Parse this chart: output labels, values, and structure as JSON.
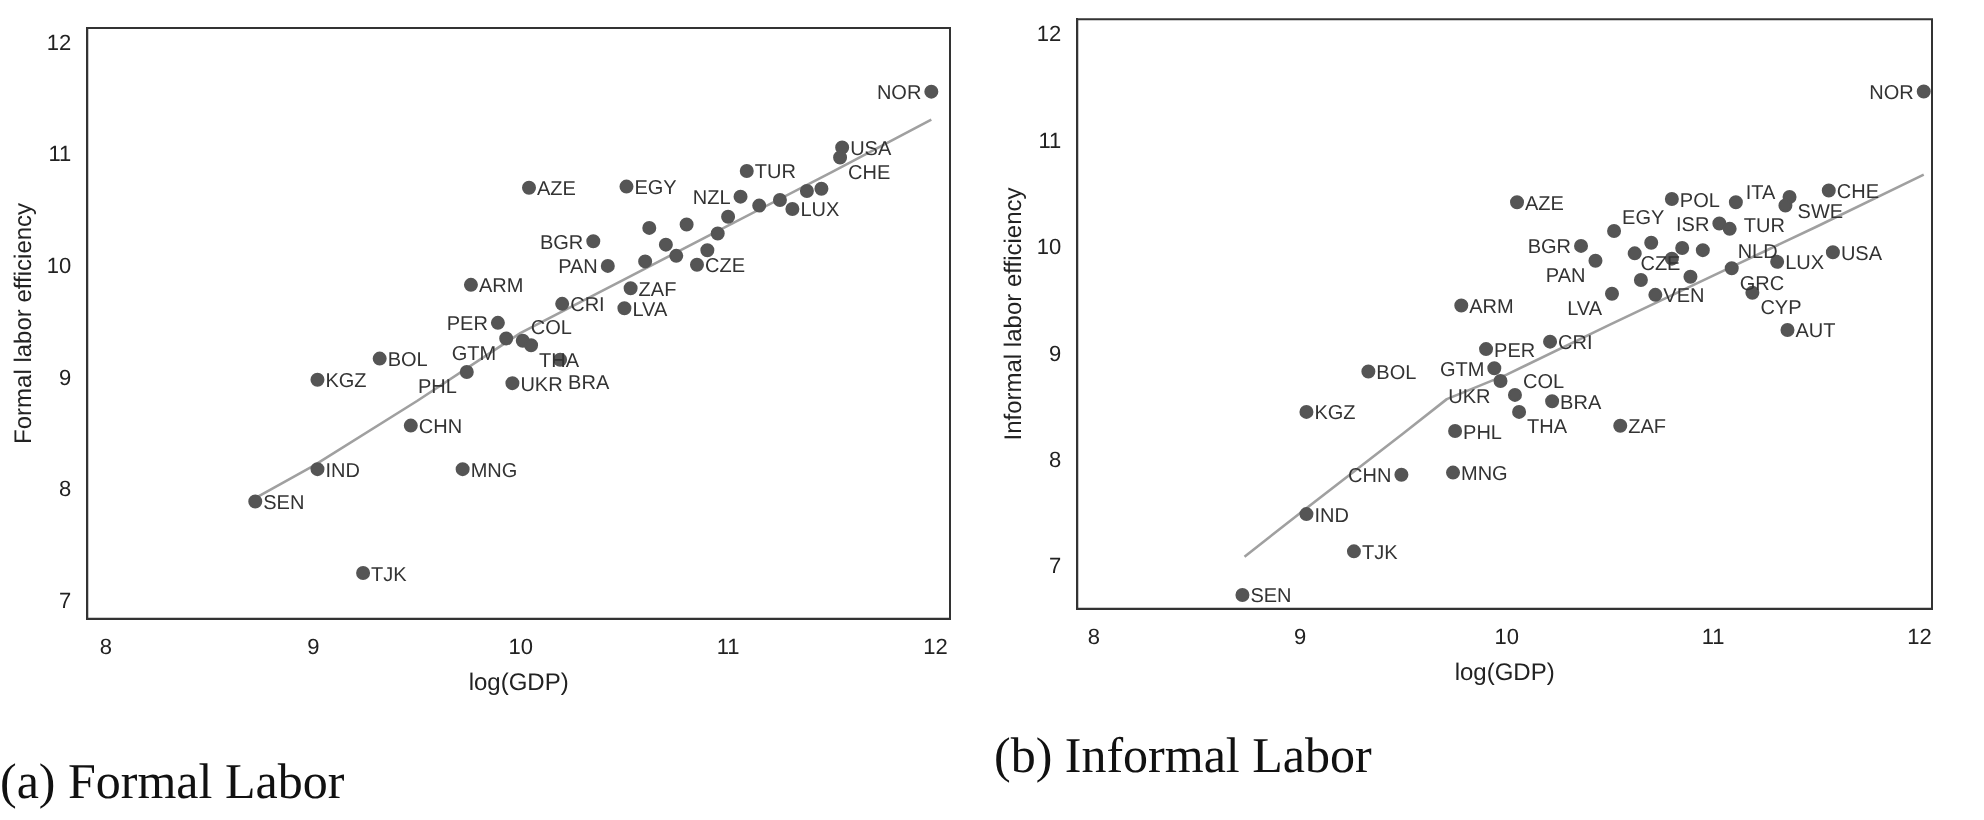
{
  "chart_data": [
    {
      "type": "scatter",
      "title": "(a) Formal Labor",
      "xlabel": "log(GDP)",
      "ylabel": "Formal labor efficiency",
      "xlim": [
        7.91,
        12.07
      ],
      "ylim": [
        6.85,
        12.14
      ],
      "xticks": [
        8,
        9,
        10,
        11,
        12
      ],
      "yticks": [
        7,
        8,
        9,
        10,
        11,
        12
      ],
      "grid": false,
      "legend": false,
      "marker": "circle",
      "series": [
        {
          "type": "scatter",
          "color": "#555555",
          "x": [
            8.72,
            9.02,
            9.02,
            9.32,
            9.47,
            9.24,
            9.72,
            9.74,
            9.76,
            10.04,
            10.51,
            11.09,
            11.55,
            11.54,
            11.98,
            11.06,
            10.35,
            10.42,
            10.53,
            10.5,
            10.2,
            9.89,
            9.93,
            10.01,
            10.05,
            10.19,
            9.96,
            10.85,
            11.31,
            10.62,
            10.7,
            10.8,
            10.9,
            11.0,
            11.15,
            11.25,
            11.38,
            11.45,
            10.75,
            10.95,
            10.6
          ],
          "values": [
            7.9,
            8.19,
            8.99,
            9.18,
            8.58,
            7.26,
            8.19,
            9.06,
            9.84,
            10.71,
            10.72,
            10.86,
            11.07,
            10.98,
            11.57,
            10.63,
            10.23,
            10.01,
            9.81,
            9.63,
            9.67,
            9.5,
            9.36,
            9.34,
            9.3,
            9.17,
            8.96,
            10.02,
            10.52,
            10.35,
            10.2,
            10.38,
            10.15,
            10.45,
            10.55,
            10.6,
            10.68,
            10.7,
            10.1,
            10.3,
            10.05
          ],
          "value_labels": [
            "SEN",
            "IND",
            "KGZ",
            "BOL",
            "CHN",
            "TJK",
            "MNG",
            "PHL",
            "ARM",
            "AZE",
            "EGY",
            "TUR",
            "USA",
            "CHE",
            "NOR",
            "NZL",
            "BGR",
            "PAN",
            "ZAF",
            "LVA",
            "CRI",
            "PER",
            "GTM",
            "COL",
            "THA",
            "BRA",
            "UKR",
            "CZE",
            "LUX",
            null,
            null,
            null,
            null,
            null,
            null,
            null,
            null,
            null,
            null,
            null,
            null
          ]
        },
        {
          "type": "line",
          "marker": "none",
          "color": "#a0a0a0",
          "x": [
            8.72,
            9,
            9.5,
            10,
            10.5,
            11,
            11.5,
            11.98
          ],
          "values": [
            7.93,
            8.22,
            8.8,
            9.41,
            9.89,
            10.37,
            10.85,
            11.32
          ]
        }
      ]
    },
    {
      "type": "scatter",
      "title": "(b) Informal Labor",
      "xlabel": "log(GDP)",
      "ylabel": "Informal labor efficiency",
      "xlim": [
        7.92,
        12.06
      ],
      "ylim": [
        6.61,
        12.15
      ],
      "xticks": [
        8,
        9,
        10,
        11,
        12
      ],
      "yticks": [
        7,
        8,
        9,
        10,
        11,
        12
      ],
      "grid": false,
      "legend": false,
      "marker": "circle",
      "series": [
        {
          "type": "scatter",
          "color": "#555555",
          "x": [
            8.72,
            9.03,
            9.26,
            9.03,
            9.33,
            9.49,
            9.74,
            10.05,
            10.8,
            11.11,
            11.37,
            11.56,
            12.02,
            11.35,
            11.03,
            11.08,
            10.52,
            10.36,
            10.43,
            10.51,
            10.72,
            10.89,
            11.09,
            11.31,
            11.58,
            11.19,
            11.36,
            9.78,
            10.21,
            9.9,
            9.94,
            9.97,
            10.04,
            10.06,
            10.22,
            10.55,
            9.75,
            10.62,
            10.7,
            10.8,
            10.95,
            10.65,
            10.85
          ],
          "values": [
            6.74,
            7.5,
            7.15,
            8.46,
            8.84,
            7.87,
            7.89,
            10.43,
            10.46,
            10.43,
            10.48,
            10.54,
            11.47,
            10.4,
            10.23,
            10.18,
            10.16,
            10.02,
            9.88,
            9.57,
            9.56,
            9.73,
            9.81,
            9.87,
            9.96,
            9.58,
            9.23,
            9.46,
            9.12,
            9.05,
            8.87,
            8.75,
            8.62,
            8.46,
            8.56,
            8.33,
            8.28,
            9.95,
            10.05,
            9.9,
            9.98,
            9.7,
            10.0
          ],
          "value_labels": [
            "SEN",
            "IND",
            "TJK",
            "KGZ",
            "BOL",
            "CHN",
            "MNG",
            "AZE",
            "POL",
            "TUR",
            "SWE",
            "CHE",
            "NOR",
            "ITA",
            "ISR",
            "NLD",
            "EGY",
            "BGR",
            "PAN",
            "LVA",
            "VEN",
            "CZE",
            "GRC",
            "LUX",
            "USA",
            "CYP",
            "AUT",
            "ARM",
            "CRI",
            "PER",
            "GTM",
            "UKR",
            "COL",
            "THA",
            "BRA",
            "ZAF",
            "PHL",
            null,
            null,
            null,
            null,
            null,
            null
          ]
        },
        {
          "type": "line",
          "marker": "none",
          "color": "#a0a0a0",
          "x": [
            8.73,
            9,
            9.5,
            9.71,
            10,
            10.5,
            11,
            11.5,
            12.02
          ],
          "values": [
            7.1,
            7.51,
            8.26,
            8.58,
            8.81,
            9.28,
            9.74,
            10.2,
            10.69
          ]
        }
      ]
    }
  ]
}
